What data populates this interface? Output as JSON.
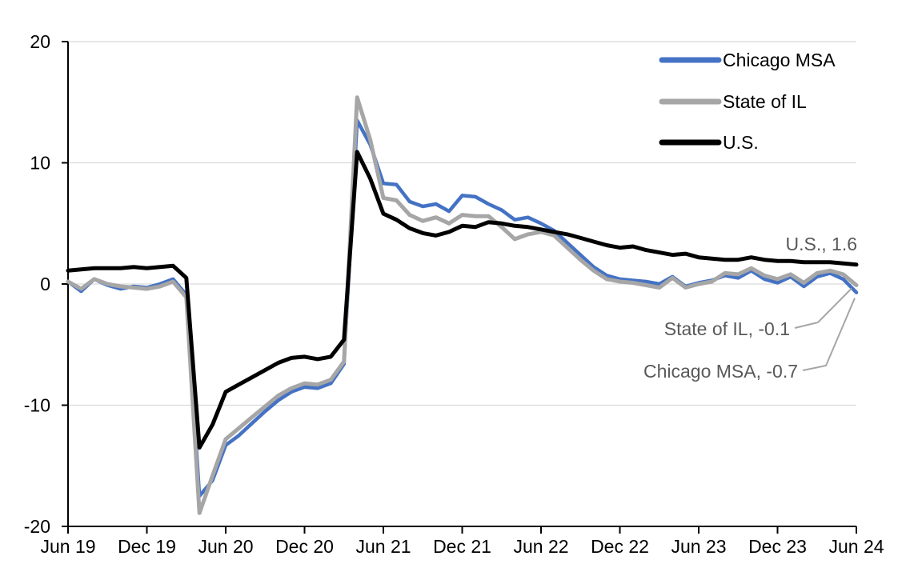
{
  "chart_data": {
    "type": "line",
    "title": "",
    "xlabel": "",
    "ylabel": "",
    "grid": true,
    "legend_position": "top-right",
    "ylim": [
      -20,
      20
    ],
    "y_ticks": [
      20,
      10,
      0,
      -10,
      -20
    ],
    "gridline_values": [
      20,
      10,
      0,
      -10
    ],
    "gridline_color": "#D9D9D9",
    "axis_color": "#000000",
    "x_tick_labels": [
      "Jun 19",
      "Dec 19",
      "Jun 20",
      "Dec 20",
      "Jun 21",
      "Dec 21",
      "Jun 22",
      "Dec 22",
      "Jun 23",
      "Dec 23",
      "Jun 24"
    ],
    "x_tick_positions": [
      0,
      6,
      12,
      18,
      24,
      30,
      36,
      42,
      48,
      54,
      60
    ],
    "x_months": [
      "Jun 19",
      "Jul 19",
      "Aug 19",
      "Sep 19",
      "Oct 19",
      "Nov 19",
      "Dec 19",
      "Jan 20",
      "Feb 20",
      "Mar 20",
      "Apr 20",
      "May 20",
      "Jun 20",
      "Jul 20",
      "Aug 20",
      "Sep 20",
      "Oct 20",
      "Nov 20",
      "Dec 20",
      "Jan 21",
      "Feb 21",
      "Mar 21",
      "Apr 21",
      "May 21",
      "Jun 21",
      "Jul 21",
      "Aug 21",
      "Sep 21",
      "Oct 21",
      "Nov 21",
      "Dec 21",
      "Jan 22",
      "Feb 22",
      "Mar 22",
      "Apr 22",
      "May 22",
      "Jun 22",
      "Jul 22",
      "Aug 22",
      "Sep 22",
      "Oct 22",
      "Nov 22",
      "Dec 22",
      "Jan 23",
      "Feb 23",
      "Mar 23",
      "Apr 23",
      "May 23",
      "Jun 23",
      "Jul 23",
      "Aug 23",
      "Sep 23",
      "Oct 23",
      "Nov 23",
      "Dec 23",
      "Jan 24",
      "Feb 24",
      "Mar 24",
      "Apr 24",
      "May 24",
      "Jun 24"
    ],
    "series": [
      {
        "name": "Chicago MSA",
        "color": "#4472C4",
        "stroke_width": 4.5,
        "final_value": -0.7,
        "values": [
          0.2,
          -0.6,
          0.4,
          -0.1,
          -0.4,
          -0.2,
          -0.3,
          0.0,
          0.4,
          -0.9,
          -17.5,
          -16.2,
          -13.3,
          -12.5,
          -11.5,
          -10.5,
          -9.6,
          -8.9,
          -8.5,
          -8.6,
          -8.2,
          -6.6,
          13.5,
          11.5,
          8.3,
          8.2,
          6.8,
          6.4,
          6.6,
          6.0,
          7.3,
          7.2,
          6.6,
          6.1,
          5.3,
          5.5,
          5.0,
          4.4,
          3.4,
          2.4,
          1.4,
          0.7,
          0.4,
          0.3,
          0.2,
          0.0,
          0.6,
          -0.2,
          0.1,
          0.3,
          0.7,
          0.5,
          1.1,
          0.4,
          0.1,
          0.6,
          -0.2,
          0.6,
          0.9,
          0.4,
          -0.7
        ]
      },
      {
        "name": "State of IL",
        "color": "#A6A6A6",
        "stroke_width": 5,
        "final_value": -0.1,
        "values": [
          0.2,
          -0.4,
          0.4,
          0.0,
          -0.2,
          -0.3,
          -0.4,
          -0.2,
          0.2,
          -1.1,
          -18.9,
          -15.8,
          -12.8,
          -11.9,
          -11.0,
          -10.1,
          -9.2,
          -8.6,
          -8.2,
          -8.3,
          -7.9,
          -6.4,
          15.4,
          11.9,
          7.1,
          6.9,
          5.7,
          5.2,
          5.5,
          5.0,
          5.7,
          5.6,
          5.6,
          4.7,
          3.7,
          4.1,
          4.3,
          4.0,
          3.0,
          2.0,
          1.1,
          0.4,
          0.2,
          0.1,
          -0.1,
          -0.3,
          0.5,
          -0.3,
          0.0,
          0.2,
          0.9,
          0.8,
          1.3,
          0.7,
          0.4,
          0.8,
          0.1,
          0.9,
          1.1,
          0.8,
          -0.1
        ]
      },
      {
        "name": "U.S.",
        "color": "#000000",
        "stroke_width": 5,
        "final_value": 1.6,
        "values": [
          1.1,
          1.2,
          1.3,
          1.3,
          1.3,
          1.4,
          1.3,
          1.4,
          1.5,
          0.5,
          -13.5,
          -11.6,
          -8.9,
          -8.3,
          -7.7,
          -7.1,
          -6.5,
          -6.1,
          -6.0,
          -6.2,
          -6.0,
          -4.6,
          10.9,
          8.7,
          5.8,
          5.3,
          4.6,
          4.2,
          4.0,
          4.3,
          4.8,
          4.7,
          5.1,
          5.0,
          4.8,
          4.7,
          4.5,
          4.3,
          4.1,
          3.8,
          3.5,
          3.2,
          3.0,
          3.1,
          2.8,
          2.6,
          2.4,
          2.5,
          2.2,
          2.1,
          2.0,
          2.0,
          2.2,
          2.0,
          1.9,
          1.9,
          1.8,
          1.8,
          1.8,
          1.7,
          1.6
        ]
      }
    ],
    "annotations": [
      {
        "text": "U.S., 1.6",
        "series": "U.S.",
        "color": "#595959"
      },
      {
        "text": "State of IL, -0.1",
        "series": "State of IL",
        "color": "#595959"
      },
      {
        "text": "Chicago MSA, -0.7",
        "series": "Chicago MSA",
        "color": "#595959"
      }
    ],
    "leader_line_color": "#A6A6A6"
  }
}
